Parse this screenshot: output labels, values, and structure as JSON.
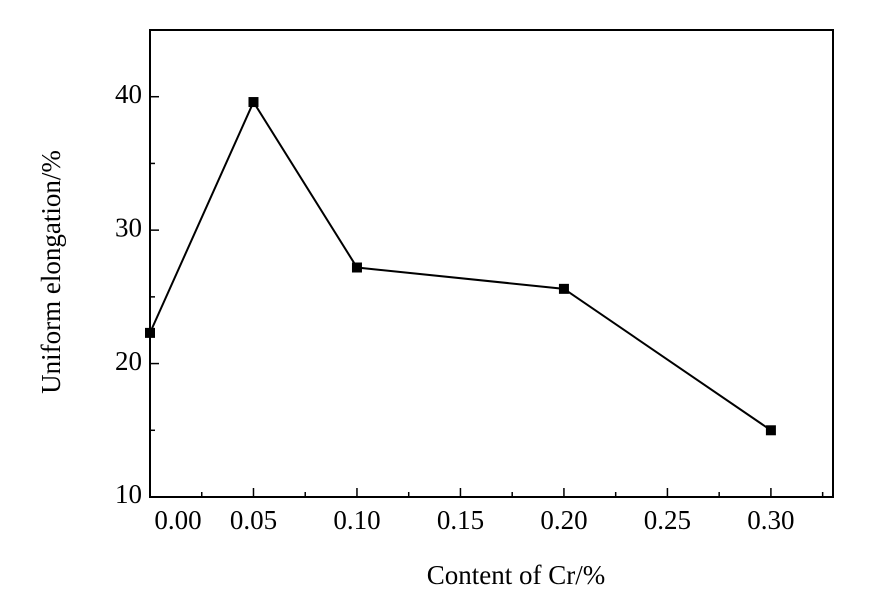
{
  "chart_data": {
    "type": "line",
    "x_label": "Content of Cr/%",
    "y_label": "Uniform elongation/%",
    "x": [
      0,
      0.05,
      0.1,
      0.2,
      0.3
    ],
    "series": [
      {
        "color": "#000000",
        "values": [
          22.3,
          39.6,
          27.2,
          25.6,
          15.0
        ]
      }
    ],
    "xlim": [
      0,
      0.33
    ],
    "ylim": [
      10,
      45
    ],
    "xticks": [
      {
        "value": 0,
        "label": "0.00"
      },
      0.05,
      {
        "value": 0.1,
        "label": "0.10"
      },
      0.15,
      {
        "value": 0.2,
        "label": "0.20"
      },
      0.25,
      {
        "value": 0.3,
        "label": "0.30"
      }
    ],
    "xticks_minor": [
      0.025,
      0.075,
      0.125,
      0.175,
      0.225,
      0.275,
      0.325
    ],
    "yticks": [
      10,
      20,
      30,
      40
    ],
    "yticks_minor": [
      15,
      25,
      35
    ],
    "marker": "square"
  }
}
